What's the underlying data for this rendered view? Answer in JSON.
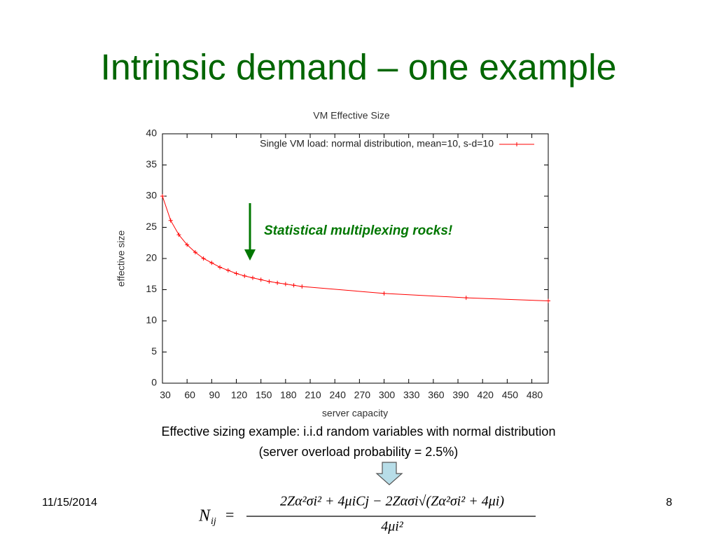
{
  "slide_title": "Intrinsic demand – one example",
  "chart_data": {
    "type": "line",
    "title": "VM Effective Size",
    "x_label": "server capacity",
    "y_label": "effective size",
    "x": [
      30,
      40,
      50,
      60,
      70,
      80,
      90,
      100,
      110,
      120,
      130,
      140,
      150,
      160,
      170,
      180,
      190,
      200,
      300,
      400,
      500
    ],
    "series": [
      {
        "name": "Single VM load: normal distribution, mean=10, s-d=10",
        "color": "#ff0000",
        "values": [
          30,
          26.1,
          23.8,
          22.2,
          21.0,
          20.0,
          19.3,
          18.6,
          18.1,
          17.6,
          17.2,
          16.9,
          16.6,
          16.3,
          16.1,
          15.9,
          15.7,
          15.5,
          14.4,
          13.7,
          13.2
        ]
      }
    ],
    "xlim": [
      30,
      500
    ],
    "ylim": [
      0,
      40
    ],
    "xticks": [
      30,
      60,
      90,
      120,
      150,
      180,
      210,
      240,
      270,
      300,
      330,
      360,
      390,
      420,
      450,
      480
    ],
    "yticks": [
      0,
      5,
      10,
      15,
      20,
      25,
      30,
      35,
      40
    ],
    "legend": "upper right",
    "grid": false,
    "annotation": "Statistical multiplexing rocks!"
  },
  "caption": [
    "Effective sizing example: i.i.d random variables with normal distribution",
    "(server overload probability = 2.5%)"
  ],
  "formula": {
    "lhs": "N",
    "lhs_sub": "ij",
    "numerator": "2Zα²σi² + 4μiCj − 2Zασi√(Zα²σi² + 4μi)",
    "denominator": "4μi²"
  },
  "date": "11/15/2014",
  "page_number": "8"
}
